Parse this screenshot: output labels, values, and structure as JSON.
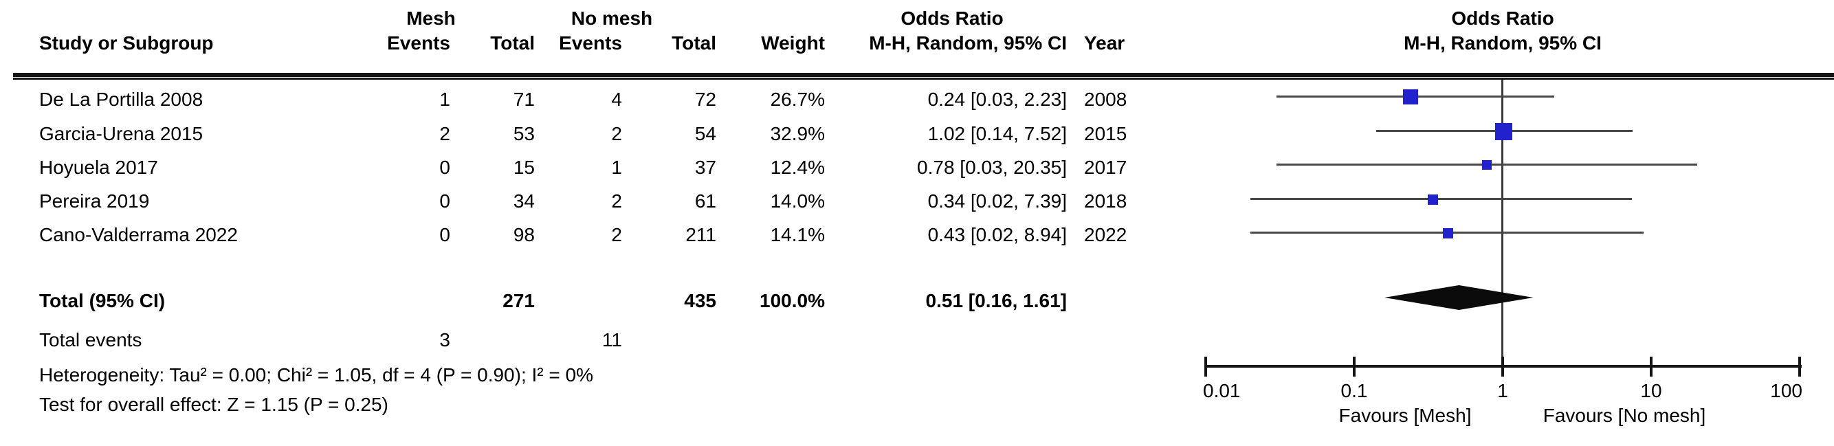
{
  "table": {
    "header": {
      "group1": "Mesh",
      "group2": "No mesh",
      "or_title": "Odds Ratio",
      "study": "Study or Subgroup",
      "events1": "Events",
      "total1": "Total",
      "events2": "Events",
      "total2": "Total",
      "weight": "Weight",
      "or_ci": "M-H, Random, 95% CI",
      "year": "Year"
    },
    "rows": [
      {
        "study": "De La Portilla 2008",
        "mesh_events": "1",
        "mesh_total": "71",
        "nomesh_events": "4",
        "nomesh_total": "72",
        "weight": "26.7%",
        "or_ci": "0.24 [0.03, 2.23]",
        "year": "2008"
      },
      {
        "study": "Garcia-Urena 2015",
        "mesh_events": "2",
        "mesh_total": "53",
        "nomesh_events": "2",
        "nomesh_total": "54",
        "weight": "32.9%",
        "or_ci": "1.02 [0.14, 7.52]",
        "year": "2015"
      },
      {
        "study": "Hoyuela 2017",
        "mesh_events": "0",
        "mesh_total": "15",
        "nomesh_events": "1",
        "nomesh_total": "37",
        "weight": "12.4%",
        "or_ci": "0.78 [0.03, 20.35]",
        "year": "2017"
      },
      {
        "study": "Pereira 2019",
        "mesh_events": "0",
        "mesh_total": "34",
        "nomesh_events": "2",
        "nomesh_total": "61",
        "weight": "14.0%",
        "or_ci": "0.34 [0.02, 7.39]",
        "year": "2018"
      },
      {
        "study": "Cano-Valderrama 2022",
        "mesh_events": "0",
        "mesh_total": "98",
        "nomesh_events": "2",
        "nomesh_total": "211",
        "weight": "14.1%",
        "or_ci": "0.43 [0.02, 8.94]",
        "year": "2022"
      }
    ],
    "total_row": {
      "label": "Total (95% CI)",
      "mesh_total": "271",
      "nomesh_total": "435",
      "weight": "100.0%",
      "or_ci": "0.51 [0.16, 1.61]"
    },
    "total_events": {
      "label": "Total events",
      "mesh": "3",
      "nomesh": "11"
    },
    "heterogeneity": "Heterogeneity: Tau² = 0.00; Chi² = 1.05, df = 4 (P = 0.90); I² = 0%",
    "overall_effect": "Test for overall effect: Z = 1.15 (P = 0.25)"
  },
  "plot": {
    "title1": "Odds Ratio",
    "title2": "M-H, Random, 95% CI",
    "tick_labels": [
      "0.01",
      "0.1",
      "1",
      "10",
      "100"
    ],
    "favours_left": "Favours [Mesh]",
    "favours_right": "Favours [No mesh]",
    "marker_color": "#2121cd",
    "ci_line_color": "#474747",
    "axis_color": "#151515",
    "diamond_color": "#0b0b0b"
  },
  "chart_data": {
    "type": "scatter",
    "variant": "forest-plot",
    "title": "Odds Ratio, M-H, Random, 95% CI",
    "x_scale": "log10",
    "xlim": [
      0.01,
      100
    ],
    "x_ticks": [
      0.01,
      0.1,
      1,
      10,
      100
    ],
    "null_line": 1,
    "xlabel_left": "Favours [Mesh]",
    "xlabel_right": "Favours [No mesh]",
    "studies": [
      {
        "label": "De La Portilla 2008",
        "or": 0.24,
        "ci_low": 0.03,
        "ci_high": 2.23,
        "weight_pct": 26.7,
        "year": 2008
      },
      {
        "label": "Garcia-Urena 2015",
        "or": 1.02,
        "ci_low": 0.14,
        "ci_high": 7.52,
        "weight_pct": 32.9,
        "year": 2015
      },
      {
        "label": "Hoyuela 2017",
        "or": 0.78,
        "ci_low": 0.03,
        "ci_high": 20.35,
        "weight_pct": 12.4,
        "year": 2017
      },
      {
        "label": "Pereira 2019",
        "or": 0.34,
        "ci_low": 0.02,
        "ci_high": 7.39,
        "weight_pct": 14.0,
        "year": 2018
      },
      {
        "label": "Cano-Valderrama 2022",
        "or": 0.43,
        "ci_low": 0.02,
        "ci_high": 8.94,
        "weight_pct": 14.1,
        "year": 2022
      }
    ],
    "overall": {
      "label": "Total (95% CI)",
      "or": 0.51,
      "ci_low": 0.16,
      "ci_high": 1.61,
      "weight_pct": 100.0
    }
  }
}
